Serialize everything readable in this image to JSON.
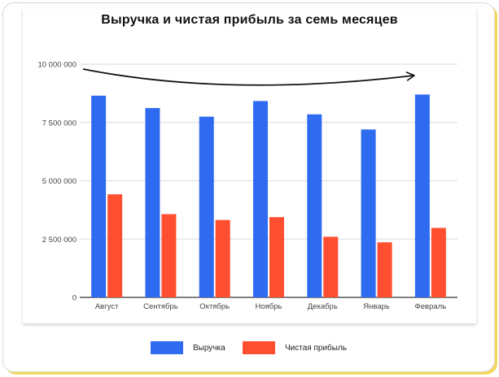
{
  "colors": {
    "revenue": "#2f6bf0",
    "profit": "#ff4f30",
    "grid": "#dadada",
    "axis": "#333333",
    "frame_shadow": "#f3d95a"
  },
  "chart_data": {
    "type": "bar",
    "title": "Выручка и чистая прибыль за семь месяцев",
    "xlabel": "",
    "ylabel": "",
    "ylim": [
      0,
      10000000
    ],
    "yticks": [
      0,
      2500000,
      5000000,
      7500000,
      10000000
    ],
    "ytick_labels": [
      "0",
      "2 500 000",
      "5 000 000",
      "7 500 000",
      "10 000 000"
    ],
    "categories": [
      "Август",
      "Сентябрь",
      "Октябрь",
      "Ноябрь",
      "Декабрь",
      "Январь",
      "Февраль"
    ],
    "series": [
      {
        "name": "Выручка",
        "values": [
          8650000,
          8120000,
          7750000,
          8420000,
          7850000,
          7200000,
          8700000
        ]
      },
      {
        "name": "Чистая прибыль",
        "values": [
          4420000,
          3570000,
          3320000,
          3440000,
          2600000,
          2360000,
          2980000
        ]
      }
    ],
    "legend_position": "bottom",
    "grid": true,
    "annotation": "curved-arrow"
  }
}
